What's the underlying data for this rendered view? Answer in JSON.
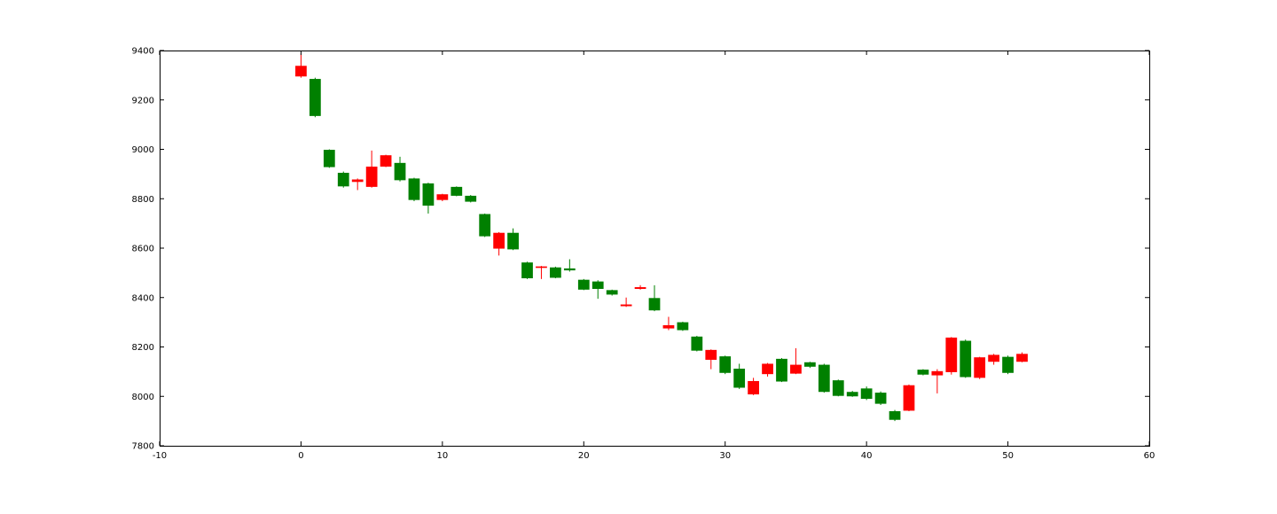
{
  "chart_data": {
    "type": "candlestick",
    "xlim": [
      -10,
      60
    ],
    "ylim": [
      7800,
      9400
    ],
    "x_ticks": [
      -10,
      0,
      10,
      20,
      30,
      40,
      50,
      60
    ],
    "y_ticks": [
      7800,
      8000,
      8200,
      8400,
      8600,
      8800,
      9000,
      9200,
      9400
    ],
    "colors": {
      "up": "#ff0000",
      "down": "#008000"
    },
    "candles": [
      {
        "x": 0,
        "low": 9290,
        "high": 9388,
        "top": 9338,
        "bottom": 9295,
        "color": "up"
      },
      {
        "x": 1,
        "low": 9130,
        "high": 9290,
        "top": 9285,
        "bottom": 9135,
        "color": "down"
      },
      {
        "x": 2,
        "low": 8925,
        "high": 9000,
        "top": 8998,
        "bottom": 8928,
        "color": "down"
      },
      {
        "x": 3,
        "low": 8845,
        "high": 8910,
        "top": 8905,
        "bottom": 8850,
        "color": "down"
      },
      {
        "x": 4,
        "low": 8835,
        "high": 8882,
        "top": 8878,
        "bottom": 8868,
        "color": "up"
      },
      {
        "x": 5,
        "low": 8845,
        "high": 8995,
        "top": 8930,
        "bottom": 8848,
        "color": "up"
      },
      {
        "x": 6,
        "low": 8928,
        "high": 8978,
        "top": 8976,
        "bottom": 8930,
        "color": "up"
      },
      {
        "x": 7,
        "low": 8870,
        "high": 8970,
        "top": 8945,
        "bottom": 8875,
        "color": "down"
      },
      {
        "x": 8,
        "low": 8790,
        "high": 8885,
        "top": 8882,
        "bottom": 8795,
        "color": "down"
      },
      {
        "x": 9,
        "low": 8740,
        "high": 8865,
        "top": 8862,
        "bottom": 8772,
        "color": "down"
      },
      {
        "x": 10,
        "low": 8790,
        "high": 8820,
        "top": 8818,
        "bottom": 8795,
        "color": "up"
      },
      {
        "x": 11,
        "low": 8810,
        "high": 8850,
        "top": 8848,
        "bottom": 8812,
        "color": "down"
      },
      {
        "x": 12,
        "low": 8785,
        "high": 8815,
        "top": 8812,
        "bottom": 8788,
        "color": "down"
      },
      {
        "x": 13,
        "low": 8645,
        "high": 8740,
        "top": 8738,
        "bottom": 8648,
        "color": "down"
      },
      {
        "x": 14,
        "low": 8570,
        "high": 8665,
        "top": 8662,
        "bottom": 8598,
        "color": "up"
      },
      {
        "x": 15,
        "low": 8592,
        "high": 8680,
        "top": 8662,
        "bottom": 8595,
        "color": "down"
      },
      {
        "x": 16,
        "low": 8475,
        "high": 8545,
        "top": 8542,
        "bottom": 8478,
        "color": "down"
      },
      {
        "x": 17,
        "low": 8475,
        "high": 8528,
        "top": 8526,
        "bottom": 8520,
        "color": "up"
      },
      {
        "x": 18,
        "low": 8478,
        "high": 8525,
        "top": 8522,
        "bottom": 8480,
        "color": "down"
      },
      {
        "x": 19,
        "low": 8505,
        "high": 8555,
        "top": 8518,
        "bottom": 8510,
        "color": "down"
      },
      {
        "x": 20,
        "low": 8430,
        "high": 8475,
        "top": 8472,
        "bottom": 8432,
        "color": "down"
      },
      {
        "x": 21,
        "low": 8395,
        "high": 8470,
        "top": 8465,
        "bottom": 8435,
        "color": "down"
      },
      {
        "x": 22,
        "low": 8408,
        "high": 8432,
        "top": 8430,
        "bottom": 8412,
        "color": "down"
      },
      {
        "x": 23,
        "low": 8362,
        "high": 8400,
        "top": 8372,
        "bottom": 8365,
        "color": "up"
      },
      {
        "x": 24,
        "low": 8432,
        "high": 8450,
        "top": 8442,
        "bottom": 8435,
        "color": "up"
      },
      {
        "x": 25,
        "low": 8345,
        "high": 8450,
        "top": 8398,
        "bottom": 8348,
        "color": "down"
      },
      {
        "x": 26,
        "low": 8268,
        "high": 8322,
        "top": 8288,
        "bottom": 8275,
        "color": "up"
      },
      {
        "x": 27,
        "low": 8265,
        "high": 8302,
        "top": 8300,
        "bottom": 8268,
        "color": "down"
      },
      {
        "x": 28,
        "low": 8182,
        "high": 8245,
        "top": 8242,
        "bottom": 8185,
        "color": "down"
      },
      {
        "x": 29,
        "low": 8110,
        "high": 8190,
        "top": 8188,
        "bottom": 8148,
        "color": "up"
      },
      {
        "x": 30,
        "low": 8090,
        "high": 8165,
        "top": 8162,
        "bottom": 8095,
        "color": "down"
      },
      {
        "x": 31,
        "low": 8030,
        "high": 8132,
        "top": 8112,
        "bottom": 8035,
        "color": "down"
      },
      {
        "x": 32,
        "low": 8005,
        "high": 8075,
        "top": 8062,
        "bottom": 8008,
        "color": "up"
      },
      {
        "x": 33,
        "low": 8080,
        "high": 8135,
        "top": 8132,
        "bottom": 8090,
        "color": "up"
      },
      {
        "x": 34,
        "low": 8058,
        "high": 8155,
        "top": 8152,
        "bottom": 8060,
        "color": "down"
      },
      {
        "x": 35,
        "low": 8090,
        "high": 8195,
        "top": 8128,
        "bottom": 8092,
        "color": "up"
      },
      {
        "x": 36,
        "low": 8115,
        "high": 8140,
        "top": 8138,
        "bottom": 8120,
        "color": "down"
      },
      {
        "x": 37,
        "low": 8015,
        "high": 8132,
        "top": 8128,
        "bottom": 8018,
        "color": "down"
      },
      {
        "x": 38,
        "low": 8000,
        "high": 8068,
        "top": 8065,
        "bottom": 8002,
        "color": "down"
      },
      {
        "x": 39,
        "low": 7998,
        "high": 8022,
        "top": 8018,
        "bottom": 8000,
        "color": "down"
      },
      {
        "x": 40,
        "low": 7985,
        "high": 8040,
        "top": 8032,
        "bottom": 7990,
        "color": "down"
      },
      {
        "x": 41,
        "low": 7965,
        "high": 8020,
        "top": 8015,
        "bottom": 7970,
        "color": "down"
      },
      {
        "x": 42,
        "low": 7900,
        "high": 7945,
        "top": 7940,
        "bottom": 7905,
        "color": "down"
      },
      {
        "x": 43,
        "low": 7940,
        "high": 8048,
        "top": 8045,
        "bottom": 7942,
        "color": "up"
      },
      {
        "x": 44,
        "low": 8085,
        "high": 8110,
        "top": 8108,
        "bottom": 8088,
        "color": "down"
      },
      {
        "x": 45,
        "low": 8012,
        "high": 8110,
        "top": 8102,
        "bottom": 8085,
        "color": "up"
      },
      {
        "x": 46,
        "low": 8088,
        "high": 8240,
        "top": 8238,
        "bottom": 8098,
        "color": "up"
      },
      {
        "x": 47,
        "low": 8075,
        "high": 8230,
        "top": 8225,
        "bottom": 8078,
        "color": "down"
      },
      {
        "x": 48,
        "low": 8070,
        "high": 8160,
        "top": 8158,
        "bottom": 8075,
        "color": "up"
      },
      {
        "x": 49,
        "low": 8128,
        "high": 8172,
        "top": 8168,
        "bottom": 8140,
        "color": "up"
      },
      {
        "x": 50,
        "low": 8090,
        "high": 8165,
        "top": 8160,
        "bottom": 8095,
        "color": "down"
      },
      {
        "x": 51,
        "low": 8138,
        "high": 8178,
        "top": 8172,
        "bottom": 8140,
        "color": "up"
      }
    ]
  }
}
